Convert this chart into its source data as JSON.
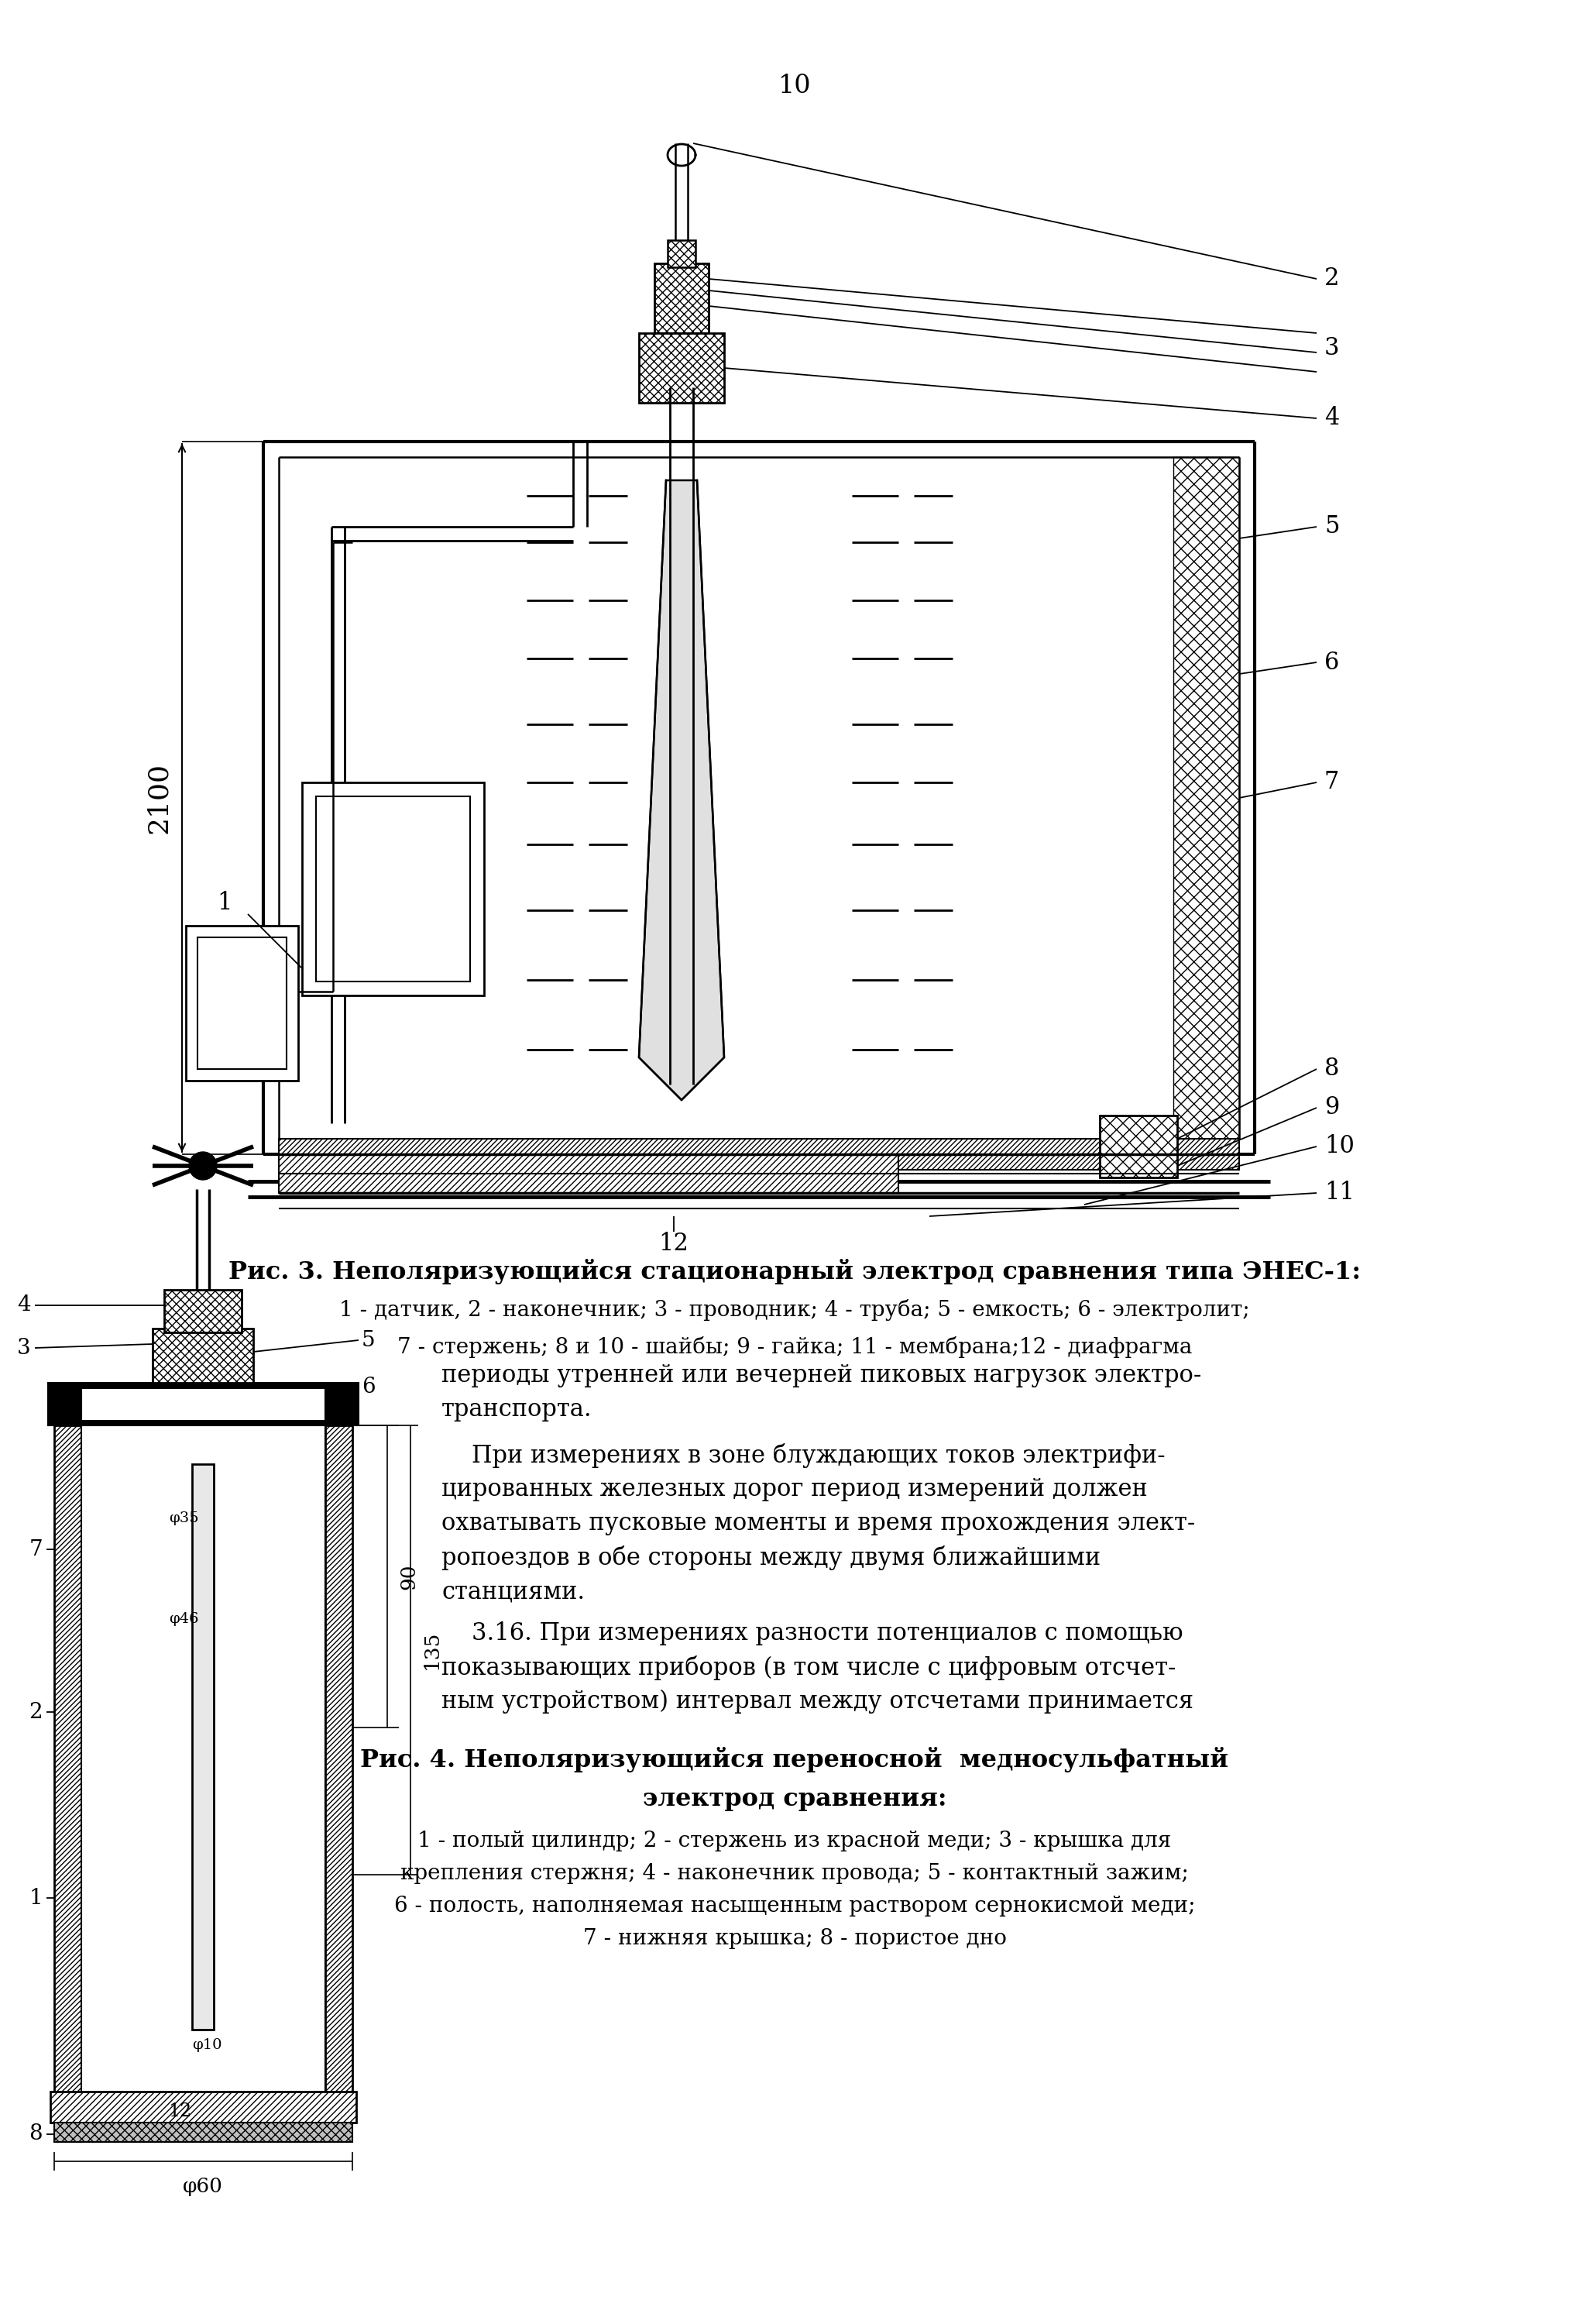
{
  "page_number": "10",
  "fig3_caption_bold": "Рис. 3. Неполяризующийся стационарный электрод сравнения типа ЭНЕС-1:",
  "fig3_caption_line2": "1 - датчик, 2 - наконечник; 3 - проводник; 4 - труба; 5 - емкость; 6 - электролит;",
  "fig3_caption_line3": "7 - стержень; 8 и 10 - шайбы; 9 - гайка; 11 - мембрана;12 - диафрагма",
  "text_right_line1": "периоды утренней или вечерней пиковых нагрузок электро-",
  "text_right_line2": "транспорта.",
  "text_right_para2_l1": "    При измерениях в зоне блуждающих токов электрифи-",
  "text_right_para2_l2": "цированных железных дорог период измерений должен",
  "text_right_para2_l3": "охватывать пусковые моменты и время прохождения элект-",
  "text_right_para2_l4": "ропоездов в обе стороны между двумя ближайшими",
  "text_right_para2_l5": "станциями.",
  "text_right_para3_l1": "    3.16. При измерениях разности потенциалов с помощью",
  "text_right_para3_l2": "показывающих приборов (в том числе с цифровым отсчет-",
  "text_right_para3_l3": "ным устройством) интервал между отсчетами принимается",
  "fig4_cap_bold1": "Рис. 4. Неполяризующийся переносной  медносульфатный",
  "fig4_cap_bold2": "электрод сравнения:",
  "fig4_cap_l1": "1 - полый цилиндр; 2 - стержень из красной меди; 3 - крышка для",
  "fig4_cap_l2": "крепления стержня; 4 - наконечник провода; 5 - контактный зажим;",
  "fig4_cap_l3": "6 - полость, наполняемая насыщенным раствором сернокисмой меди;",
  "fig4_cap_l4": "7 - нижняя крышка; 8 - пористое дно",
  "bg_color": "#ffffff",
  "text_color": "#000000"
}
